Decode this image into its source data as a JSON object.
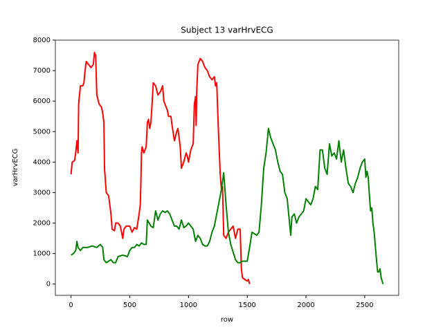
{
  "chart_data": {
    "type": "line",
    "title": "Subject 13 varHrvECG",
    "x_label": "row",
    "y_label": "varHrvECG",
    "xlim": [
      -133,
      2789
    ],
    "ylim": [
      -370,
      8000
    ],
    "xticks": [
      0,
      500,
      1000,
      1500,
      2000,
      2500
    ],
    "yticks": [
      0,
      1000,
      2000,
      3000,
      4000,
      5000,
      6000,
      7000,
      8000
    ],
    "series": [
      {
        "color": "#ff0000",
        "x": [
          0,
          10,
          30,
          40,
          50,
          60,
          65,
          80,
          100,
          110,
          120,
          130,
          150,
          170,
          190,
          200,
          210,
          220,
          240,
          260,
          270,
          280,
          285,
          300,
          320,
          340,
          350,
          370,
          380,
          400,
          420,
          440,
          450,
          470,
          500,
          520,
          540,
          560,
          580,
          590,
          595,
          600,
          605,
          620,
          640,
          650,
          660,
          670,
          680,
          690,
          700,
          720,
          740,
          760,
          780,
          790,
          810,
          820,
          830,
          850,
          860,
          880,
          900,
          910,
          930,
          940,
          960,
          980,
          990,
          1000,
          1020,
          1040,
          1050,
          1060,
          1065,
          1070,
          1080,
          1100,
          1120,
          1140,
          1160,
          1180,
          1200,
          1220,
          1230,
          1240,
          1250,
          1260,
          1270,
          1280,
          1290,
          1300,
          1320,
          1340,
          1360,
          1380,
          1400,
          1420,
          1440,
          1450,
          1460,
          1480,
          1500,
          1510,
          1520
        ],
        "values": [
          3600,
          4000,
          4050,
          4300,
          4700,
          4300,
          5900,
          6500,
          6500,
          6600,
          7000,
          7300,
          7200,
          7100,
          7200,
          7600,
          7500,
          6200,
          5900,
          5800,
          5600,
          5300,
          3800,
          3000,
          2900,
          2300,
          1800,
          1750,
          2000,
          2000,
          1900,
          1500,
          1800,
          1900,
          1900,
          1700,
          1850,
          1800,
          2300,
          2600,
          3400,
          4300,
          4500,
          4300,
          4500,
          5300,
          5400,
          5100,
          5300,
          5900,
          6600,
          6500,
          6200,
          6300,
          6500,
          6000,
          5800,
          5700,
          5500,
          5500,
          5200,
          4700,
          5000,
          5100,
          4500,
          3800,
          4000,
          4300,
          4200,
          4000,
          4400,
          4600,
          5900,
          6150,
          5200,
          6300,
          7200,
          7400,
          7300,
          7100,
          7000,
          6800,
          6700,
          6800,
          6500,
          6600,
          5500,
          4500,
          3600,
          3100,
          3200,
          1600,
          1500,
          1700,
          1800,
          1900,
          1500,
          1800,
          1800,
          500,
          200,
          150,
          100,
          150,
          0
        ]
      },
      {
        "color": "#008000",
        "x": [
          0,
          20,
          40,
          50,
          60,
          80,
          100,
          140,
          180,
          220,
          250,
          270,
          280,
          300,
          320,
          340,
          360,
          380,
          400,
          440,
          480,
          500,
          520,
          540,
          560,
          580,
          600,
          620,
          640,
          650,
          680,
          700,
          720,
          740,
          760,
          780,
          800,
          820,
          840,
          860,
          880,
          900,
          920,
          940,
          960,
          980,
          1000,
          1040,
          1060,
          1080,
          1100,
          1120,
          1140,
          1160,
          1180,
          1200,
          1220,
          1240,
          1260,
          1280,
          1300,
          1320,
          1340,
          1360,
          1380,
          1400,
          1420,
          1440,
          1460,
          1500,
          1520,
          1540,
          1560,
          1580,
          1600,
          1620,
          1640,
          1660,
          1680,
          1700,
          1720,
          1740,
          1760,
          1780,
          1800,
          1820,
          1840,
          1860,
          1870,
          1880,
          1900,
          1920,
          1940,
          1960,
          1980,
          2000,
          2020,
          2040,
          2060,
          2080,
          2100,
          2120,
          2140,
          2160,
          2180,
          2200,
          2220,
          2240,
          2260,
          2280,
          2300,
          2320,
          2340,
          2360,
          2380,
          2400,
          2420,
          2440,
          2460,
          2480,
          2500,
          2510,
          2520,
          2530,
          2540,
          2550,
          2560,
          2570,
          2580,
          2600,
          2610,
          2620,
          2630,
          2640,
          2656
        ],
        "values": [
          950,
          1000,
          1100,
          1400,
          1200,
          1100,
          1200,
          1200,
          1250,
          1200,
          1300,
          1200,
          800,
          700,
          750,
          800,
          700,
          700,
          900,
          950,
          900,
          1100,
          1200,
          1200,
          1300,
          1250,
          1350,
          1300,
          1300,
          2100,
          1900,
          1850,
          2400,
          2100,
          2300,
          2400,
          2350,
          2400,
          2300,
          2100,
          1900,
          1900,
          1800,
          2100,
          1850,
          1900,
          2000,
          1800,
          1400,
          1600,
          1500,
          1300,
          1250,
          1250,
          1400,
          1700,
          1900,
          2300,
          2700,
          3100,
          3650,
          2600,
          1700,
          1300,
          1050,
          800,
          700,
          700,
          750,
          750,
          1200,
          1700,
          1650,
          1600,
          1700,
          2600,
          3800,
          4300,
          5100,
          4800,
          4600,
          4400,
          4000,
          3700,
          3600,
          3000,
          2800,
          2000,
          1600,
          2200,
          2300,
          2000,
          2200,
          2300,
          2400,
          2800,
          2700,
          2600,
          2800,
          3200,
          3100,
          4400,
          4400,
          3800,
          3600,
          4600,
          4200,
          4300,
          4100,
          4700,
          4000,
          4400,
          3800,
          3300,
          3200,
          3000,
          3300,
          3500,
          3800,
          4000,
          4100,
          3500,
          3700,
          3500,
          2900,
          2400,
          2500,
          2000,
          1700,
          800,
          400,
          400,
          500,
          200,
          0
        ]
      }
    ]
  }
}
